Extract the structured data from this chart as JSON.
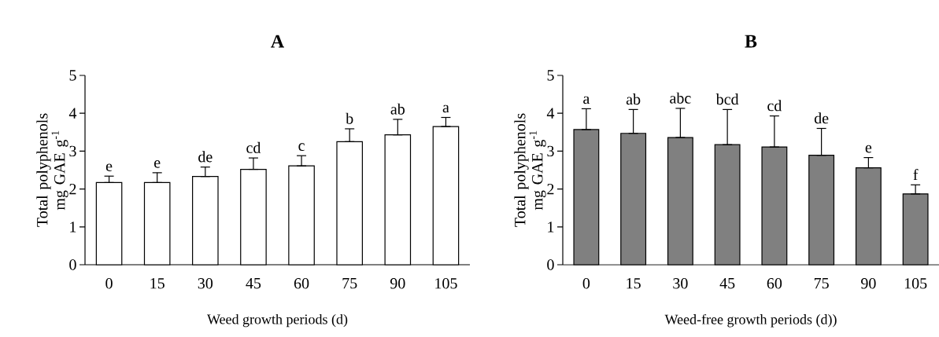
{
  "chart_data": [
    {
      "type": "bar",
      "title": "A",
      "xlabel": "Weed growth periods (d)",
      "ylabel": "Total polyphenols mg GAE g$^{-1}$",
      "categories": [
        "0",
        "15",
        "30",
        "45",
        "60",
        "75",
        "90",
        "105"
      ],
      "values": [
        2.17,
        2.17,
        2.33,
        2.52,
        2.61,
        3.25,
        3.43,
        3.65
      ],
      "color": "#ffffff",
      "errors": [
        [
          2.17,
          2.34
        ],
        [
          2.17,
          2.43
        ],
        [
          2.33,
          2.58
        ],
        [
          2.52,
          2.82
        ],
        [
          2.61,
          2.88
        ],
        [
          3.25,
          3.59
        ],
        [
          3.43,
          3.84
        ],
        [
          3.65,
          3.89
        ]
      ],
      "ylim": [
        0,
        5
      ],
      "yticks": [
        0,
        1,
        2,
        3,
        4,
        5
      ],
      "annotations": [
        {
          "text": "e",
          "x": "0",
          "y": 2.34
        },
        {
          "text": "e",
          "x": "15",
          "y": 2.43
        },
        {
          "text": "de",
          "x": "30",
          "y": 2.58
        },
        {
          "text": "cd",
          "x": "45",
          "y": 2.82
        },
        {
          "text": "c",
          "x": "60",
          "y": 2.88
        },
        {
          "text": "b",
          "x": "75",
          "y": 3.59
        },
        {
          "text": "ab",
          "x": "90",
          "y": 3.84
        },
        {
          "text": "a",
          "x": "105",
          "y": 3.89
        }
      ]
    },
    {
      "type": "bar",
      "title": "B",
      "xlabel": "Weed-free growth periods (d))",
      "ylabel": "Total polyphenols mg GAE g$^{-1}$",
      "categories": [
        "0",
        "15",
        "30",
        "45",
        "60",
        "75",
        "90",
        "105"
      ],
      "values": [
        3.57,
        3.47,
        3.36,
        3.17,
        3.11,
        2.89,
        2.56,
        1.87
      ],
      "color": "#808080",
      "errors": [
        [
          3.57,
          4.12
        ],
        [
          3.47,
          4.1
        ],
        [
          3.36,
          4.13
        ],
        [
          3.17,
          4.1
        ],
        [
          3.11,
          3.93
        ],
        [
          2.89,
          3.6
        ],
        [
          2.56,
          2.83
        ],
        [
          1.87,
          2.11
        ]
      ],
      "ylim": [
        0,
        5
      ],
      "yticks": [
        0,
        1,
        2,
        3,
        4,
        5
      ],
      "annotations": [
        {
          "text": "a",
          "x": "0",
          "y": 4.12
        },
        {
          "text": "ab",
          "x": "15",
          "y": 4.1
        },
        {
          "text": "abc",
          "x": "30",
          "y": 4.13
        },
        {
          "text": "bcd",
          "x": "45",
          "y": 4.1
        },
        {
          "text": "cd",
          "x": "60",
          "y": 3.93
        },
        {
          "text": "de",
          "x": "75",
          "y": 3.6
        },
        {
          "text": "e",
          "x": "90",
          "y": 2.83
        },
        {
          "text": "f",
          "x": "105",
          "y": 2.11
        }
      ]
    }
  ]
}
